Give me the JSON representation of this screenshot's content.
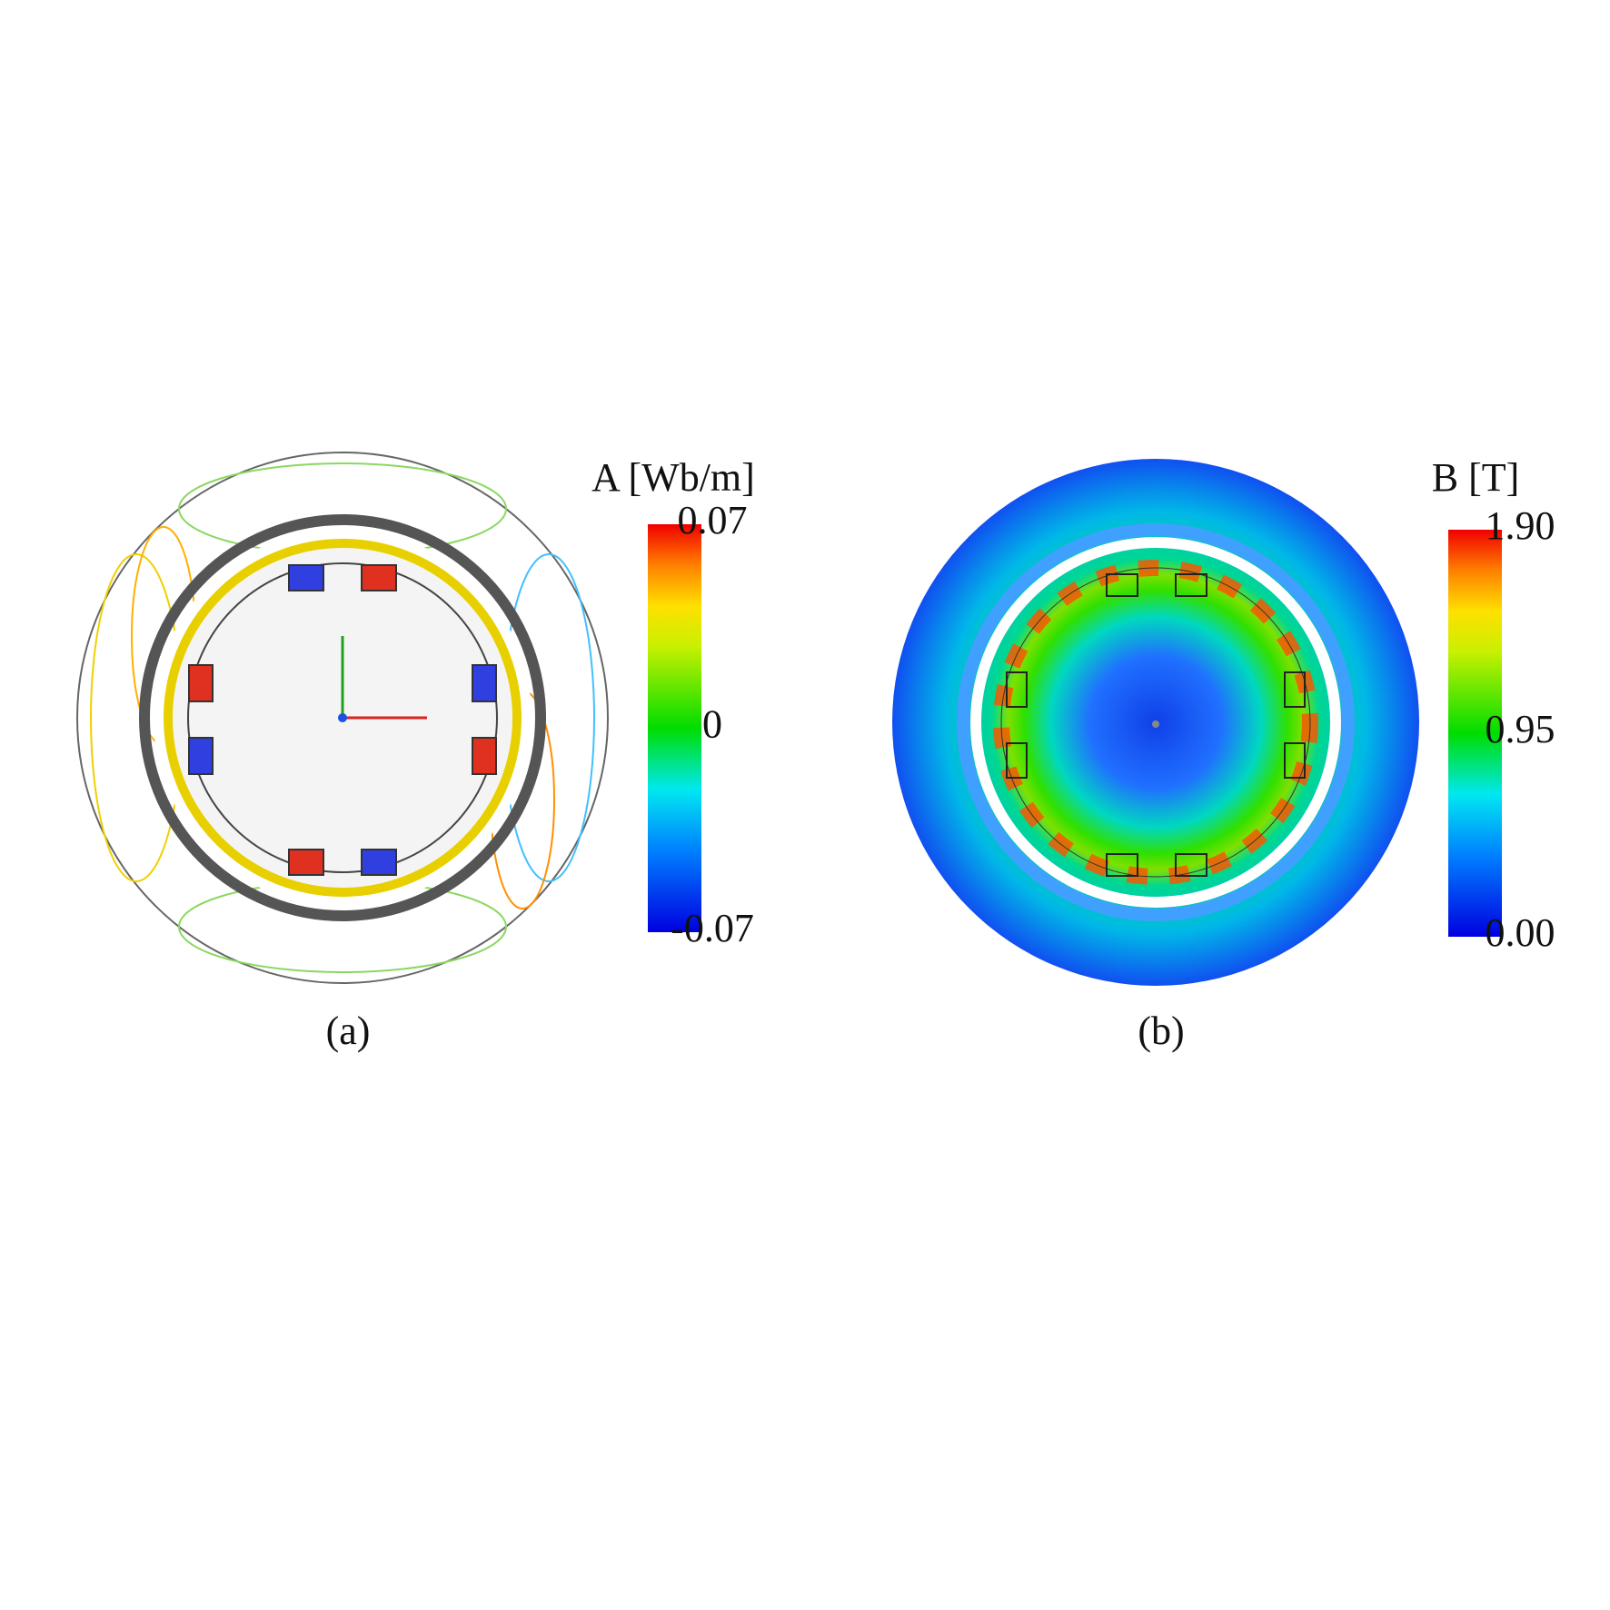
{
  "panels": [
    {
      "caption": "(a)",
      "colorbar": {
        "title": "A [Wb/m]",
        "lim": [
          -0.07,
          0.07
        ],
        "ticks": [
          0.07,
          0,
          -0.07
        ]
      }
    },
    {
      "caption": "(b)",
      "colorbar": {
        "title": "B [T]",
        "lim": [
          0,
          1.9
        ],
        "ticks": [
          {
            "value": 1.9,
            "label": "1.90"
          },
          0.95,
          {
            "value": 0,
            "label": "0.00"
          }
        ]
      }
    }
  ]
}
